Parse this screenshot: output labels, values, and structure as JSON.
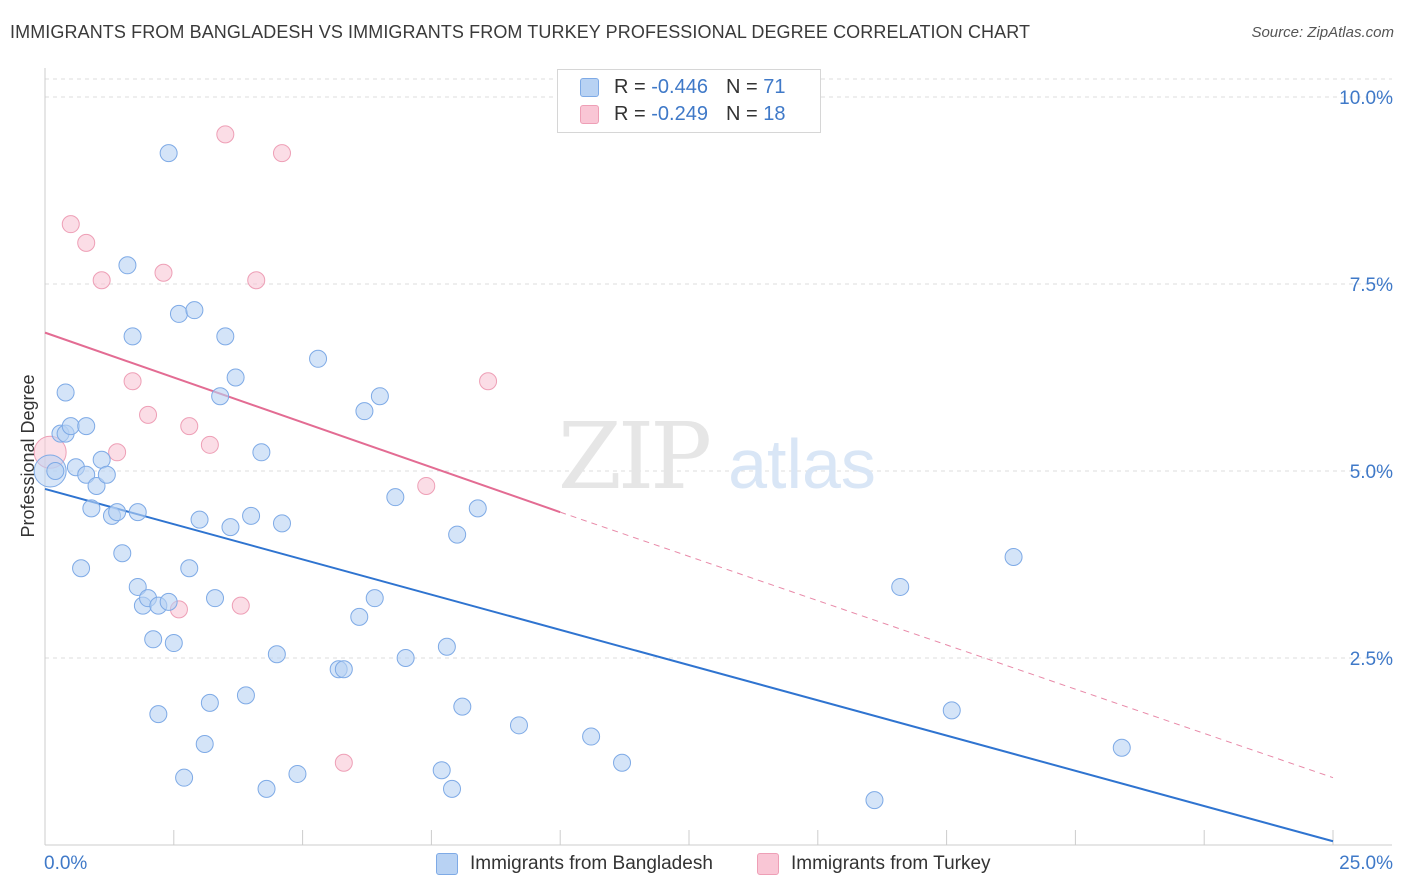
{
  "title": "IMMIGRANTS FROM BANGLADESH VS IMMIGRANTS FROM TURKEY PROFESSIONAL DEGREE CORRELATION CHART",
  "source": "Source: ZipAtlas.com",
  "watermark": {
    "zip": "ZIP",
    "atlas": "atlas"
  },
  "colors": {
    "blue_fill": "#b8d2f3",
    "blue_stroke": "#7eaae6",
    "blue_line": "#2f74d0",
    "pink_fill": "#f9c6d5",
    "pink_stroke": "#ee9fb6",
    "pink_line": "#e36c93",
    "tick_text": "#3f79c8",
    "grid": "#dddddd"
  },
  "legend": {
    "series1": {
      "r_label": "R =",
      "r_value": "-0.446",
      "n_label": "N =",
      "n_value": "71"
    },
    "series2": {
      "r_label": "R =",
      "r_value": "-0.249",
      "n_label": "N =",
      "n_value": "18"
    }
  },
  "chart_data": {
    "type": "scatter",
    "xlabel": "",
    "ylabel": "Professional Degree",
    "xlim": [
      0,
      25
    ],
    "ylim": [
      0,
      10.5
    ],
    "x_tick_labels": [
      "0.0%",
      "25.0%"
    ],
    "y_ticks": [
      {
        "value": 2.5,
        "label": "2.5%"
      },
      {
        "value": 5.0,
        "label": "5.0%"
      },
      {
        "value": 7.5,
        "label": "7.5%"
      },
      {
        "value": 10.0,
        "label": "10.0%"
      }
    ],
    "grid": true,
    "series": [
      {
        "name": "Immigrants from Bangladesh",
        "color": "#b8d2f3",
        "trend": {
          "x0": 0,
          "y0": 4.76,
          "x1": 25,
          "y1": 0.05,
          "style": "solid"
        },
        "points": [
          [
            0.2,
            5.0
          ],
          [
            0.3,
            5.5
          ],
          [
            0.4,
            5.5
          ],
          [
            0.4,
            6.05
          ],
          [
            0.5,
            5.6
          ],
          [
            0.6,
            5.05
          ],
          [
            0.7,
            3.7
          ],
          [
            0.8,
            4.95
          ],
          [
            0.8,
            5.6
          ],
          [
            0.9,
            4.5
          ],
          [
            1.0,
            4.8
          ],
          [
            1.1,
            5.15
          ],
          [
            1.2,
            4.95
          ],
          [
            1.3,
            4.4
          ],
          [
            1.4,
            4.45
          ],
          [
            1.5,
            3.9
          ],
          [
            1.6,
            7.75
          ],
          [
            1.7,
            6.8
          ],
          [
            1.8,
            3.45
          ],
          [
            1.8,
            4.45
          ],
          [
            1.9,
            3.2
          ],
          [
            2.0,
            3.3
          ],
          [
            2.1,
            2.75
          ],
          [
            2.2,
            1.75
          ],
          [
            2.2,
            3.2
          ],
          [
            2.4,
            3.25
          ],
          [
            2.4,
            9.25
          ],
          [
            2.5,
            2.7
          ],
          [
            2.6,
            7.1
          ],
          [
            2.7,
            0.9
          ],
          [
            2.8,
            3.7
          ],
          [
            2.9,
            7.15
          ],
          [
            3.0,
            4.35
          ],
          [
            3.1,
            1.35
          ],
          [
            3.2,
            1.9
          ],
          [
            3.3,
            3.3
          ],
          [
            3.4,
            6.0
          ],
          [
            3.5,
            6.8
          ],
          [
            3.6,
            4.25
          ],
          [
            3.7,
            6.25
          ],
          [
            3.9,
            2.0
          ],
          [
            4.0,
            4.4
          ],
          [
            4.2,
            5.25
          ],
          [
            4.3,
            0.75
          ],
          [
            4.5,
            2.55
          ],
          [
            4.6,
            4.3
          ],
          [
            4.9,
            0.95
          ],
          [
            5.3,
            6.5
          ],
          [
            5.7,
            2.35
          ],
          [
            5.8,
            2.35
          ],
          [
            6.1,
            3.05
          ],
          [
            6.2,
            5.8
          ],
          [
            6.4,
            3.3
          ],
          [
            6.5,
            6.0
          ],
          [
            6.8,
            4.65
          ],
          [
            7.0,
            2.5
          ],
          [
            7.7,
            1.0
          ],
          [
            7.8,
            2.65
          ],
          [
            7.9,
            0.75
          ],
          [
            8.0,
            4.15
          ],
          [
            8.1,
            1.85
          ],
          [
            8.4,
            4.5
          ],
          [
            9.2,
            1.6
          ],
          [
            10.6,
            1.45
          ],
          [
            11.2,
            1.1
          ],
          [
            16.1,
            0.6
          ],
          [
            16.6,
            3.45
          ],
          [
            17.6,
            1.8
          ],
          [
            18.8,
            3.85
          ],
          [
            20.9,
            1.3
          ]
        ],
        "large_points": [
          [
            0.1,
            5.0
          ]
        ]
      },
      {
        "name": "Immigrants from Turkey",
        "color": "#f9c6d5",
        "trend": {
          "x0": 0,
          "y0": 6.85,
          "x1": 10,
          "y1": 4.45,
          "style": "solid",
          "extended_to": [
            25,
            0.9
          ],
          "extended_style": "dashed"
        },
        "points": [
          [
            0.5,
            8.3
          ],
          [
            0.8,
            8.05
          ],
          [
            1.1,
            7.55
          ],
          [
            1.4,
            5.25
          ],
          [
            1.7,
            6.2
          ],
          [
            2.0,
            5.75
          ],
          [
            2.3,
            7.65
          ],
          [
            2.6,
            3.15
          ],
          [
            2.8,
            5.6
          ],
          [
            3.2,
            5.35
          ],
          [
            3.5,
            9.5
          ],
          [
            3.8,
            3.2
          ],
          [
            4.1,
            7.55
          ],
          [
            4.6,
            9.25
          ],
          [
            5.8,
            1.1
          ],
          [
            7.4,
            4.8
          ],
          [
            8.6,
            6.2
          ]
        ],
        "large_points": [
          [
            0.1,
            5.25
          ]
        ]
      }
    ]
  }
}
